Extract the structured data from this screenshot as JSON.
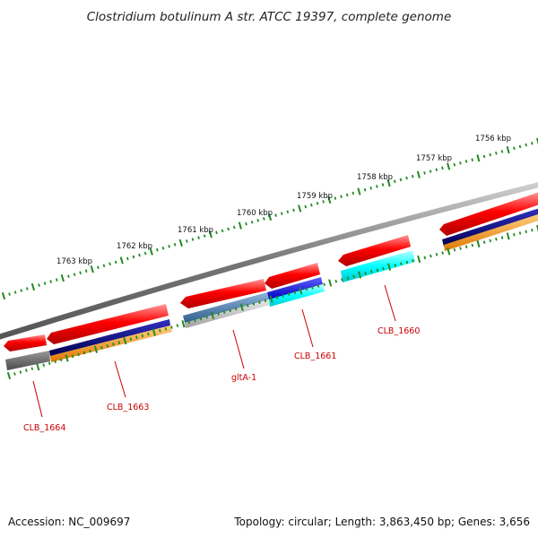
{
  "title": "Clostridium botulinum A str. ATCC 19397, complete genome",
  "footer": {
    "accession": "Accession: NC_009697",
    "summary": "Topology: circular; Length: 3,863,450 bp; Genes: 3,656"
  },
  "scale": {
    "units": "kbp",
    "labels": [
      "1756 kbp",
      "1757 kbp",
      "1758 kbp",
      "1759 kbp",
      "1760 kbp",
      "1761 kbp",
      "1762 kbp",
      "1763 kbp"
    ]
  },
  "genes": [
    {
      "name": "CLB_1660",
      "color": "#ff0000",
      "tracks": [
        "cyan"
      ]
    },
    {
      "name": "CLB_1661",
      "color": "#ff0000",
      "tracks": [
        "blue",
        "cyan"
      ]
    },
    {
      "name": "gltA-1",
      "color": "#ff0000",
      "tracks": [
        "steelblue",
        "gray"
      ]
    },
    {
      "name": "CLB_1663",
      "color": "#ff0000",
      "tracks": [
        "navy",
        "orange"
      ]
    },
    {
      "name": "CLB_1664",
      "color": "#ff0000",
      "tracks": [
        "darkgray"
      ]
    }
  ],
  "colors": {
    "backbone": "#777777",
    "ticks": "#228b22",
    "gene_red": "#ff0000",
    "label_red": "#cc0000",
    "navy": "#0a0a80",
    "orange": "#ff9900",
    "blue": "#0000ff",
    "cyan": "#00ffff",
    "steelblue": "#4a7eb0",
    "gray": "#b8b8b8",
    "darkgray": "#666666"
  }
}
